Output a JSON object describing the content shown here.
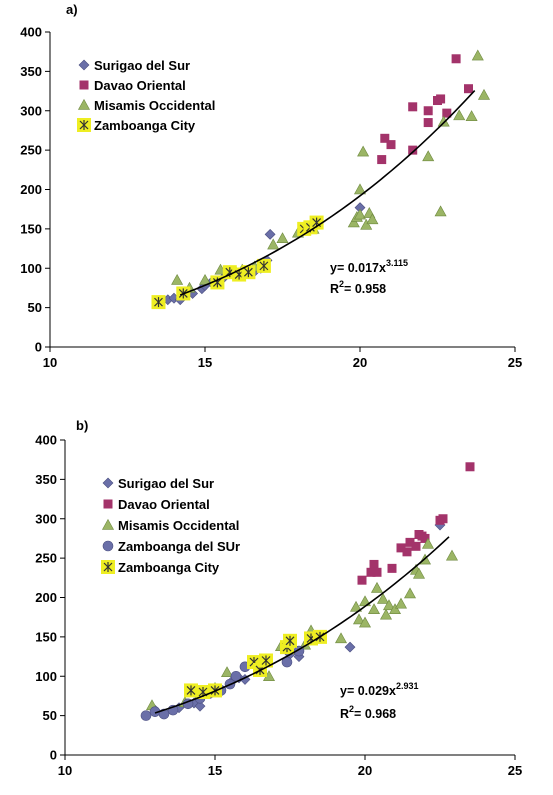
{
  "chart_data": [
    {
      "panel_label": "a)",
      "type": "scatter",
      "xlim": [
        10,
        25
      ],
      "ylim": [
        0,
        400
      ],
      "x_ticks": [
        "10",
        "15",
        "20",
        "25"
      ],
      "y_ticks": [
        "0",
        "50",
        "100",
        "150",
        "200",
        "250",
        "300",
        "350",
        "400"
      ],
      "grid": false,
      "legend_position": "top-left",
      "equation": {
        "main": "y= 0.017x",
        "exp": "3.115"
      },
      "r2": {
        "pre": "R",
        "sup": "2",
        "post": "= 0.958"
      },
      "trend": {
        "coef": 0.017,
        "exp": 3.115,
        "x_start": 14.2,
        "x_end": 23.7
      },
      "series": [
        {
          "name": "Surigao del Sur",
          "marker": "diamond",
          "color": "#6A6FA8",
          "points": [
            [
              13.8,
              60
            ],
            [
              14.0,
              62
            ],
            [
              14.2,
              60
            ],
            [
              14.6,
              68
            ],
            [
              14.9,
              74
            ],
            [
              15.0,
              78
            ],
            [
              15.2,
              82
            ],
            [
              15.6,
              88
            ],
            [
              16.0,
              90
            ],
            [
              16.3,
              94
            ],
            [
              16.6,
              96
            ],
            [
              16.8,
              100
            ],
            [
              17.0,
              110
            ],
            [
              17.1,
              143
            ],
            [
              20.0,
              177
            ]
          ]
        },
        {
          "name": "Davao Oriental",
          "marker": "square",
          "color": "#A3336A",
          "points": [
            [
              20.7,
              238
            ],
            [
              20.8,
              265
            ],
            [
              21.0,
              257
            ],
            [
              21.7,
              250
            ],
            [
              21.7,
              305
            ],
            [
              22.2,
              285
            ],
            [
              22.2,
              300
            ],
            [
              22.5,
              313
            ],
            [
              22.6,
              315
            ],
            [
              22.8,
              297
            ],
            [
              23.1,
              366
            ],
            [
              23.5,
              328
            ]
          ]
        },
        {
          "name": "Misamis Occidental",
          "marker": "triangle",
          "color": "#9BB565",
          "points": [
            [
              14.1,
              85
            ],
            [
              14.5,
              75
            ],
            [
              15.0,
              85
            ],
            [
              15.5,
              98
            ],
            [
              16.0,
              95
            ],
            [
              16.2,
              98
            ],
            [
              16.6,
              102
            ],
            [
              17.2,
              130
            ],
            [
              17.5,
              138
            ],
            [
              18.0,
              145
            ],
            [
              18.5,
              150
            ],
            [
              19.8,
              158
            ],
            [
              19.9,
              165
            ],
            [
              20.0,
              200
            ],
            [
              20.0,
              168
            ],
            [
              20.1,
              248
            ],
            [
              20.2,
              155
            ],
            [
              20.3,
              170
            ],
            [
              20.4,
              162
            ],
            [
              22.2,
              242
            ],
            [
              22.6,
              172
            ],
            [
              22.7,
              286
            ],
            [
              23.2,
              294
            ],
            [
              23.6,
              293
            ],
            [
              23.8,
              370
            ],
            [
              24.0,
              320
            ]
          ]
        },
        {
          "name": "Zamboanga City",
          "marker": "star-square",
          "color": "#EEEE22",
          "points": [
            [
              13.5,
              57
            ],
            [
              14.3,
              68
            ],
            [
              15.4,
              82
            ],
            [
              15.8,
              95
            ],
            [
              16.1,
              92
            ],
            [
              16.4,
              95
            ],
            [
              16.9,
              103
            ],
            [
              18.2,
              150
            ],
            [
              18.4,
              152
            ],
            [
              18.6,
              158
            ]
          ]
        }
      ]
    },
    {
      "panel_label": "b)",
      "type": "scatter",
      "xlim": [
        10,
        25
      ],
      "ylim": [
        0,
        400
      ],
      "x_ticks": [
        "10",
        "15",
        "20",
        "25"
      ],
      "y_ticks": [
        "0",
        "50",
        "100",
        "150",
        "200",
        "250",
        "300",
        "350",
        "400"
      ],
      "grid": false,
      "legend_position": "left",
      "equation": {
        "main": "y= 0.029x",
        "exp": "2.931"
      },
      "r2": {
        "pre": "R",
        "sup": "2",
        "post": "= 0.968"
      },
      "trend": {
        "coef": 0.029,
        "exp": 2.931,
        "x_start": 13.0,
        "x_end": 22.8
      },
      "series": [
        {
          "name": "Surigao del Sur",
          "marker": "diamond",
          "color": "#6A6FA8",
          "points": [
            [
              13.0,
              57
            ],
            [
              13.8,
              60
            ],
            [
              14.3,
              66
            ],
            [
              14.5,
              62
            ],
            [
              15.6,
              95
            ],
            [
              15.8,
              98
            ],
            [
              16.0,
              96
            ],
            [
              17.5,
              128
            ],
            [
              17.8,
              125
            ],
            [
              19.5,
              137
            ],
            [
              22.5,
              292
            ]
          ]
        },
        {
          "name": "Davao Oriental",
          "marker": "square",
          "color": "#A3336A",
          "points": [
            [
              19.9,
              222
            ],
            [
              20.2,
              232
            ],
            [
              20.3,
              242
            ],
            [
              20.4,
              232
            ],
            [
              20.9,
              237
            ],
            [
              21.2,
              263
            ],
            [
              21.4,
              258
            ],
            [
              21.5,
              270
            ],
            [
              21.7,
              265
            ],
            [
              21.8,
              280
            ],
            [
              21.9,
              278
            ],
            [
              22.0,
              275
            ],
            [
              22.5,
              298
            ],
            [
              22.6,
              300
            ],
            [
              23.5,
              366
            ]
          ]
        },
        {
          "name": "Misamis Occidental",
          "marker": "triangle",
          "color": "#9BB565",
          "points": [
            [
              12.9,
              63
            ],
            [
              14.0,
              67
            ],
            [
              15.0,
              85
            ],
            [
              15.4,
              105
            ],
            [
              16.8,
              100
            ],
            [
              17.2,
              138
            ],
            [
              18.0,
              140
            ],
            [
              18.2,
              158
            ],
            [
              19.2,
              148
            ],
            [
              19.7,
              188
            ],
            [
              19.8,
              172
            ],
            [
              20.0,
              195
            ],
            [
              20.0,
              168
            ],
            [
              20.3,
              185
            ],
            [
              20.4,
              212
            ],
            [
              20.6,
              198
            ],
            [
              20.7,
              178
            ],
            [
              20.8,
              190
            ],
            [
              21.0,
              185
            ],
            [
              21.2,
              192
            ],
            [
              21.5,
              205
            ],
            [
              21.7,
              235
            ],
            [
              21.8,
              230
            ],
            [
              22.0,
              248
            ],
            [
              22.1,
              268
            ],
            [
              22.9,
              253
            ]
          ]
        },
        {
          "name": "Zamboanga del SUr",
          "marker": "circle",
          "color": "#6A6FA8",
          "points": [
            [
              12.7,
              50
            ],
            [
              13.0,
              55
            ],
            [
              13.3,
              52
            ],
            [
              13.6,
              57
            ],
            [
              14.1,
              65
            ],
            [
              14.5,
              72
            ],
            [
              14.8,
              78
            ],
            [
              15.2,
              82
            ],
            [
              15.5,
              90
            ],
            [
              15.7,
              100
            ],
            [
              16.0,
              112
            ],
            [
              17.4,
              118
            ],
            [
              17.8,
              132
            ]
          ]
        },
        {
          "name": "Zamboanga City",
          "marker": "star-square",
          "color": "#EEEE22",
          "points": [
            [
              14.2,
              82
            ],
            [
              14.6,
              80
            ],
            [
              15.0,
              82
            ],
            [
              16.3,
              118
            ],
            [
              16.5,
              108
            ],
            [
              16.7,
              120
            ],
            [
              17.4,
              137
            ],
            [
              17.5,
              145
            ],
            [
              18.2,
              148
            ],
            [
              18.5,
              150
            ]
          ]
        }
      ]
    }
  ]
}
